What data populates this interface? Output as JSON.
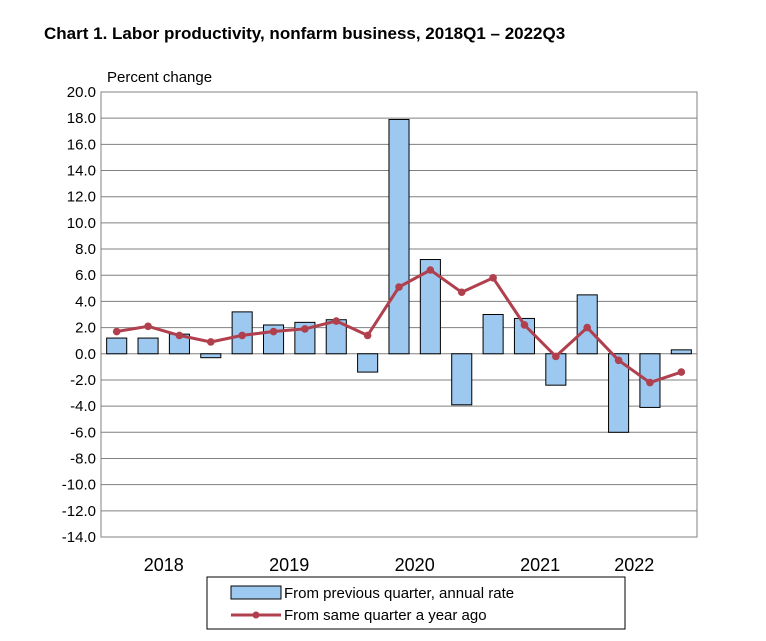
{
  "chart_data": {
    "type": "bar+line",
    "title": "Chart  1. Labor productivity, nonfarm business, 2018Q1 – 2022Q3",
    "ylabel": "Percent change",
    "xlabel": "",
    "ylim": [
      -14.0,
      20.0
    ],
    "y_ticks": [
      "20.0",
      "18.0",
      "16.0",
      "14.0",
      "12.0",
      "10.0",
      "8.0",
      "6.0",
      "4.0",
      "2.0",
      "0.0",
      "-2.0",
      "-4.0",
      "-6.0",
      "-8.0",
      "-10.0",
      "-12.0",
      "-14.0"
    ],
    "grid": true,
    "legend_position": "bottom",
    "x": [
      "2018Q1",
      "2018Q2",
      "2018Q3",
      "2018Q4",
      "2019Q1",
      "2019Q2",
      "2019Q3",
      "2019Q4",
      "2020Q1",
      "2020Q2",
      "2020Q3",
      "2020Q4",
      "2021Q1",
      "2021Q2",
      "2021Q3",
      "2021Q4",
      "2022Q1",
      "2022Q2",
      "2022Q3"
    ],
    "year_labels": [
      {
        "label": "2018",
        "quarter_index": 1.5
      },
      {
        "label": "2019",
        "quarter_index": 5.5
      },
      {
        "label": "2020",
        "quarter_index": 9.5
      },
      {
        "label": "2021",
        "quarter_index": 13.5
      },
      {
        "label": "2022",
        "quarter_index": 16.5
      }
    ],
    "series": [
      {
        "name": "From previous quarter, annual rate",
        "type": "bar",
        "color": "#9DC8F0",
        "edge": "#000000",
        "values": [
          1.2,
          1.2,
          1.5,
          -0.3,
          3.2,
          2.2,
          2.4,
          2.6,
          -1.4,
          17.9,
          7.2,
          -3.9,
          3.0,
          2.7,
          -2.4,
          4.5,
          -6.0,
          -4.1,
          0.3
        ]
      },
      {
        "name": "From same quarter a year ago",
        "type": "line",
        "color": "#B0404E",
        "values": [
          1.7,
          2.1,
          1.4,
          0.9,
          1.4,
          1.7,
          1.9,
          2.5,
          1.4,
          5.1,
          6.4,
          4.7,
          5.8,
          2.2,
          -0.2,
          2.0,
          -0.5,
          -2.2,
          -1.4
        ]
      }
    ]
  }
}
